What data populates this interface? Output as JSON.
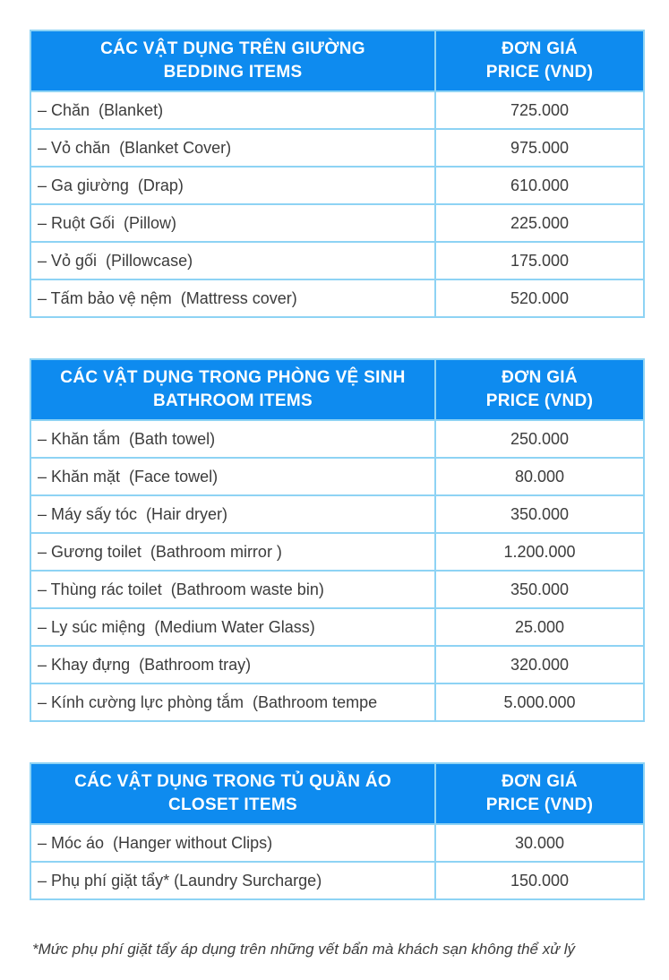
{
  "colors": {
    "header_blue": "#0e8bef",
    "border_blue": "#8ed3f4",
    "text": "#3c3c3c",
    "header_text": "#ffffff"
  },
  "tables": [
    {
      "id": "bedding",
      "header": {
        "title_vi": "CÁC VẬT DỤNG TRÊN GIƯỜNG",
        "title_en": "BEDDING ITEMS",
        "price_vi": "ĐƠN GIÁ",
        "price_en": "PRICE (VND)"
      },
      "rows": [
        {
          "item": "– Chăn  (Blanket)",
          "price": "725.000"
        },
        {
          "item": "– Vỏ chăn  (Blanket Cover)",
          "price": "975.000"
        },
        {
          "item": "– Ga giường  (Drap)",
          "price": "610.000"
        },
        {
          "item": "– Ruột Gối  (Pillow)",
          "price": "225.000"
        },
        {
          "item": "– Vỏ gối  (Pillowcase)",
          "price": "175.000"
        },
        {
          "item": "– Tấm bảo vệ nệm  (Mattress cover)",
          "price": "520.000"
        }
      ]
    },
    {
      "id": "bathroom",
      "header": {
        "title_vi": "CÁC VẬT DỤNG TRONG PHÒNG VỆ SINH",
        "title_en": "BATHROOM ITEMS",
        "price_vi": "ĐƠN GIÁ",
        "price_en": "PRICE (VND)"
      },
      "rows": [
        {
          "item": "– Khăn tắm  (Bath towel)",
          "price": "250.000"
        },
        {
          "item": "– Khăn mặt  (Face towel)",
          "price": "80.000"
        },
        {
          "item": "– Máy sấy tóc  (Hair dryer)",
          "price": "350.000"
        },
        {
          "item": "– Gương toilet  (Bathroom mirror )",
          "price": "1.200.000"
        },
        {
          "item": "– Thùng rác toilet  (Bathroom waste bin)",
          "price": "350.000"
        },
        {
          "item": "– Ly súc miệng  (Medium Water Glass)",
          "price": "25.000"
        },
        {
          "item": "– Khay đựng  (Bathroom tray)",
          "price": "320.000"
        },
        {
          "item": "– Kính cường lực phòng tắm  (Bathroom tempe",
          "price": "5.000.000"
        }
      ]
    },
    {
      "id": "closet",
      "header": {
        "title_vi": "CÁC VẬT DỤNG TRONG TỦ QUẦN ÁO",
        "title_en": "CLOSET ITEMS",
        "price_vi": "ĐƠN GIÁ",
        "price_en": "PRICE (VND)"
      },
      "rows": [
        {
          "item": "– Móc áo  (Hanger without Clips)",
          "price": "30.000"
        },
        {
          "item": "– Phụ phí giặt tẩy* (Laundry Surcharge)",
          "price": "150.000"
        }
      ]
    }
  ],
  "footnote": "*Mức phụ phí giặt tẩy áp dụng trên những vết bẩn mà khách sạn không thể xử lý"
}
